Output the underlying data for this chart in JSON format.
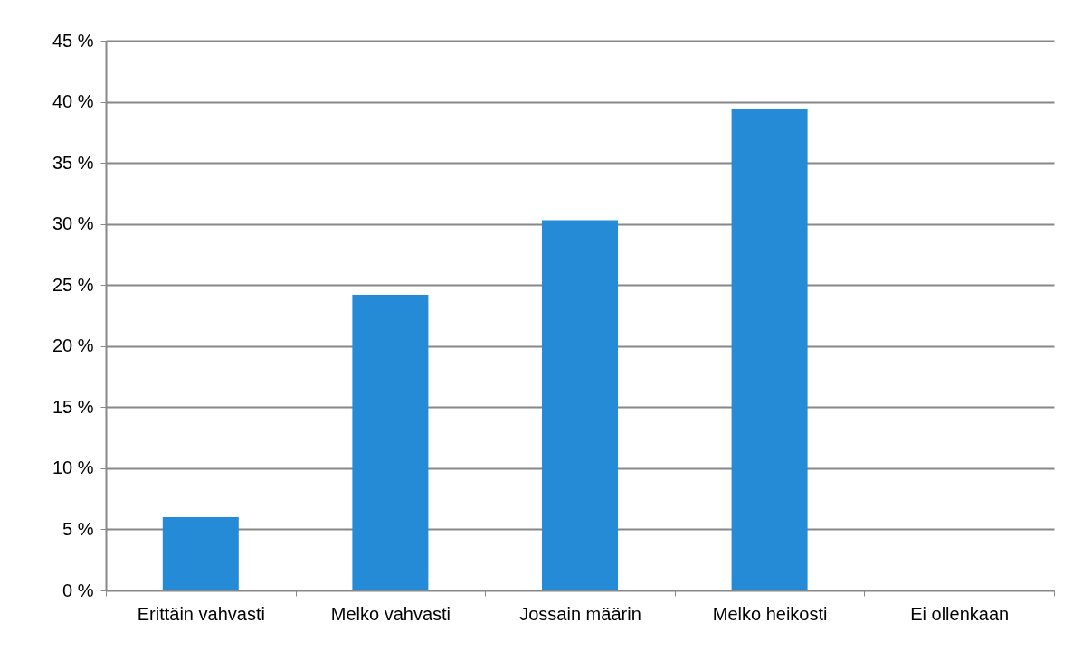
{
  "chart_data": {
    "type": "bar",
    "categories": [
      "Erittäin vahvasti",
      "Melko vahvasti",
      "Jossain määrin",
      "Melko heikosti",
      "Ei ollenkaan"
    ],
    "values": [
      6.0,
      24.2,
      30.3,
      39.4,
      0
    ],
    "color": "#268bd6",
    "ylim": [
      0,
      45
    ],
    "yticks": [
      {
        "value": 0,
        "label": "0 %"
      },
      {
        "value": 5,
        "label": "5 %"
      },
      {
        "value": 10,
        "label": "10 %"
      },
      {
        "value": 15,
        "label": "15 %"
      },
      {
        "value": 20,
        "label": "20 %"
      },
      {
        "value": 25,
        "label": "25 %"
      },
      {
        "value": 30,
        "label": "30 %"
      },
      {
        "value": 35,
        "label": "35 %"
      },
      {
        "value": 40,
        "label": "40 %"
      },
      {
        "value": 45,
        "label": "45 %"
      }
    ],
    "grid": "y"
  }
}
